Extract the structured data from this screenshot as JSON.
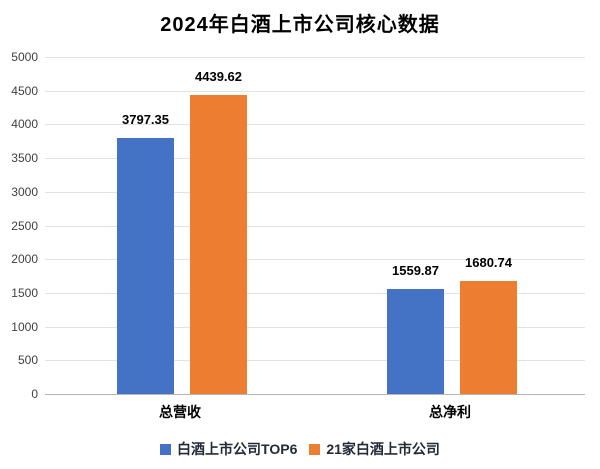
{
  "chart_data": {
    "type": "bar",
    "title": "2024年白酒上市公司核心数据",
    "categories": [
      "总营收",
      "总净利"
    ],
    "series": [
      {
        "name": "白酒上市公司TOP6",
        "color": "#4472C4",
        "values": [
          3797.35,
          1559.87
        ]
      },
      {
        "name": "21家白酒上市公司",
        "color": "#ED7D31",
        "values": [
          4439.62,
          1680.74
        ]
      }
    ],
    "xlabel": "",
    "ylabel": "",
    "ylim": [
      0,
      5000
    ],
    "ytick_step": 500,
    "yticks": [
      0,
      500,
      1000,
      1500,
      2000,
      2500,
      3000,
      3500,
      4000,
      4500,
      5000
    ],
    "grid": true,
    "data_labels": true,
    "legend_position": "bottom",
    "colors": {
      "grid": "#e2e2e2",
      "axis_line": "#b5b5b5",
      "tick_label": "#404040",
      "data_label": "#000000",
      "category_label": "#000000",
      "legend_text": "#222b36",
      "title": "#000000",
      "background": "#ffffff"
    }
  }
}
